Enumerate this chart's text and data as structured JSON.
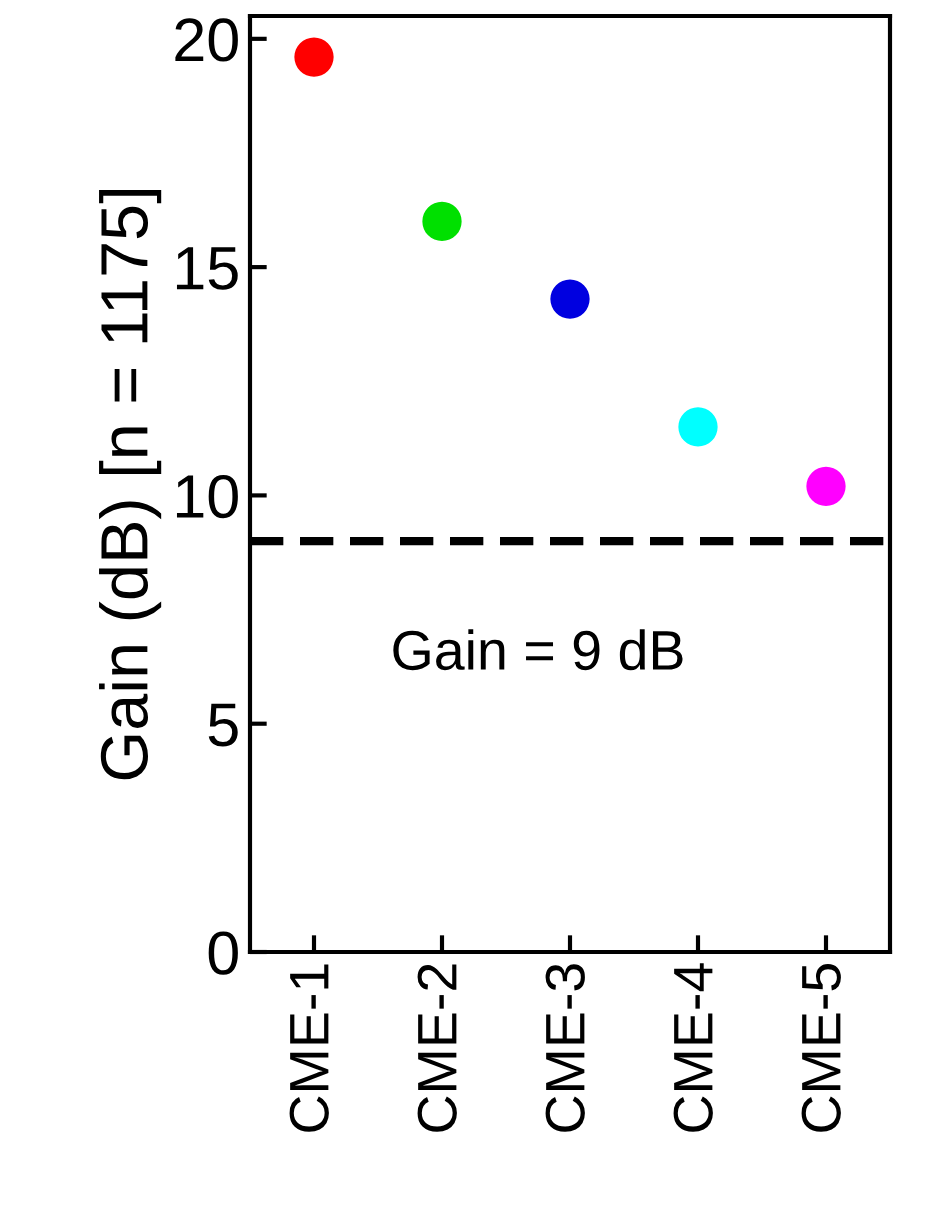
{
  "chart_data": {
    "type": "scatter",
    "ylabel": "Gain (dB) [n = 1175]",
    "categories": [
      "CME-1",
      "CME-2",
      "CME-3",
      "CME-4",
      "CME-5"
    ],
    "values": [
      19.6,
      16.0,
      14.3,
      11.5,
      10.2
    ],
    "colors": [
      "#ff0000",
      "#00e000",
      "#0000e0",
      "#00ffff",
      "#ff00ff"
    ],
    "marker": "circle",
    "ylim": [
      0,
      20.5
    ],
    "yticks": [
      0,
      5,
      10,
      15,
      20
    ],
    "grid": false,
    "legend": false,
    "ref_lines": [
      {
        "axis": "y",
        "value": 9,
        "label": "Gain = 9 dB",
        "line_style": "dashed",
        "color": "#000000"
      }
    ]
  }
}
